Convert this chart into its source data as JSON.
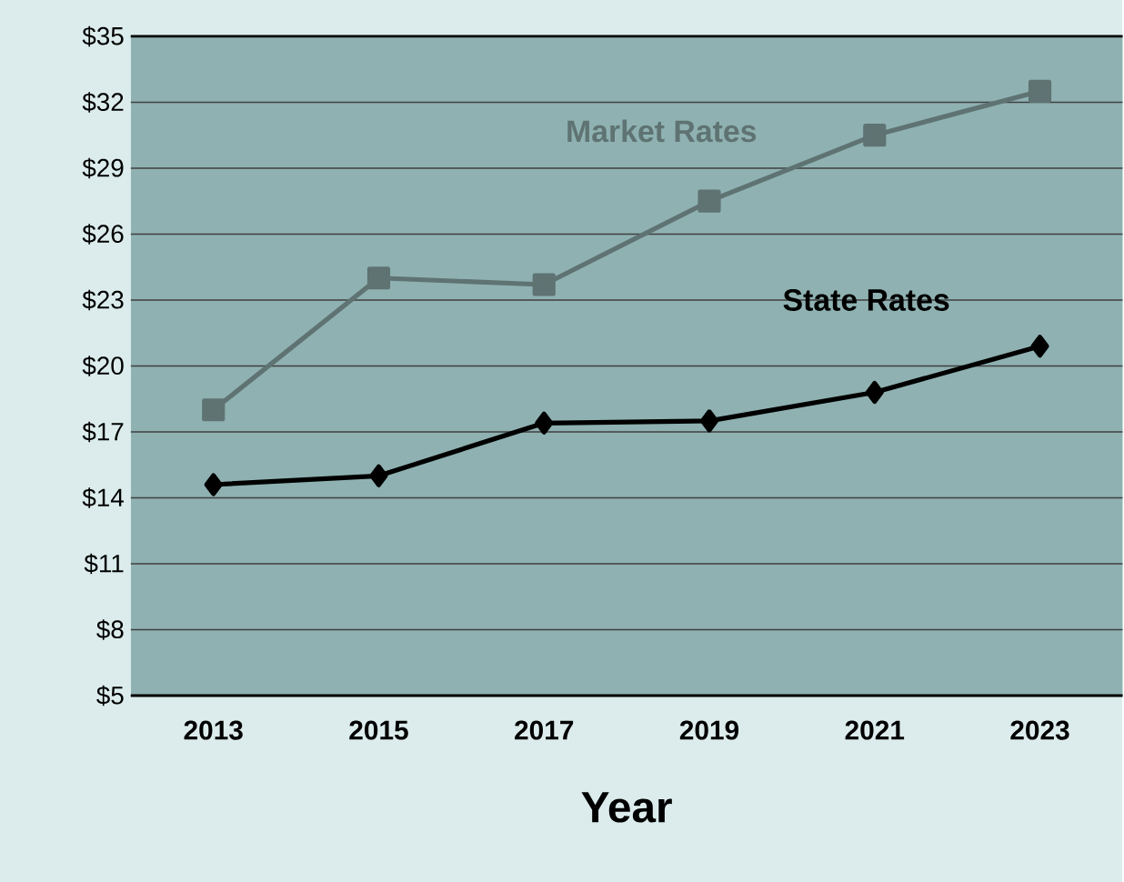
{
  "chart_data": {
    "type": "line",
    "xlabel": "Year",
    "categories": [
      "2013",
      "2015",
      "2017",
      "2019",
      "2021",
      "2023"
    ],
    "series": [
      {
        "name": "Market Rates",
        "color": "#5f7373",
        "marker": "square",
        "values": [
          18,
          24.0,
          23.7,
          27.5,
          30.5,
          32.5
        ]
      },
      {
        "name": "State Rates",
        "color": "#000000",
        "marker": "diamond",
        "values": [
          14.6,
          15.0,
          17.4,
          17.5,
          18.8,
          20.9
        ]
      }
    ],
    "ylim": [
      5,
      35
    ],
    "yticks": [
      {
        "value": 5,
        "label": "$5"
      },
      {
        "value": 8,
        "label": "$8"
      },
      {
        "value": 11,
        "label": "$11"
      },
      {
        "value": 14,
        "label": "$14"
      },
      {
        "value": 17,
        "label": "$17"
      },
      {
        "value": 20,
        "label": "$20"
      },
      {
        "value": 23,
        "label": "$23"
      },
      {
        "value": 26,
        "label": "$26"
      },
      {
        "value": 29,
        "label": "$29"
      },
      {
        "value": 32,
        "label": "$32"
      },
      {
        "value": 35,
        "label": "$35"
      }
    ],
    "grid": "y",
    "legend": false
  }
}
